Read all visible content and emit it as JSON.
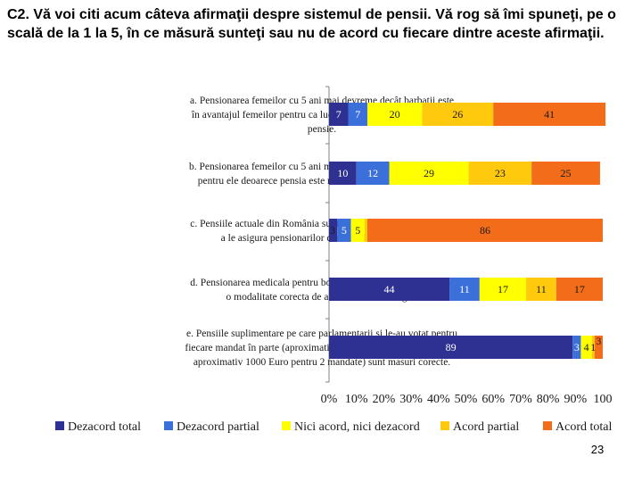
{
  "slide": {
    "title": "C2. Vă voi citi acum câteva afirmaţii despre sistemul de pensii. Vă rog să îmi spuneţi, pe o scală de la 1 la 5, în ce măsură sunteţi sau nu de acord cu fiecare dintre aceste afirmaţii.",
    "page_number": "23"
  },
  "chart_data": {
    "type": "bar",
    "orientation": "horizontal",
    "stacked": true,
    "title": "",
    "xlabel": "",
    "ylabel": "",
    "xlim": [
      0,
      100
    ],
    "x_ticks": [
      "0%",
      "10%",
      "20%",
      "30%",
      "40%",
      "50%",
      "60%",
      "70%",
      "80%",
      "90%",
      "100"
    ],
    "grid": false,
    "legend_position": "bottom",
    "categories": [
      [
        "a. Pensionarea femeilor cu 5 ani mai devreme decât barbatii este",
        "în avantajul femeilor pentru ca lucreaza mai putin pentru aceasi",
        "pensie."
      ],
      [
        "b. Pensionarea femeilor cu 5 ani mai devreme este un dezavantaj",
        "pentru ele deoarece pensia este mult mai mica decât salariul."
      ],
      [
        "c. Pensiile actuale din România sunt complet insuficiente pentru",
        "a le asigura pensionarilor conditii decente de trai."
      ],
      [
        "d. Pensionarea medicala pentru boli/handicapuri inexistente este",
        "o modalitate corecta de a obtine un venit sigur."
      ],
      [
        "e. Pensiile suplimentare pe care parlamentarii si le-au votat pentru",
        "fiecare mandat în parte (aproximativ 500 Euro pentru un mandat si",
        "aproximativ 1000 Euro pentru 2 mandate) sunt masuri corecte."
      ]
    ],
    "series": [
      {
        "name": "Dezacord total",
        "color": "#2E3192",
        "label_color": "#ffffff",
        "values": [
          7,
          10,
          3,
          44,
          89
        ]
      },
      {
        "name": "Dezacord partial",
        "color": "#3B6FD9",
        "label_color": "#ffffff",
        "values": [
          7,
          12,
          5,
          11,
          3
        ]
      },
      {
        "name": "Nici acord, nici dezacord",
        "color": "#FFFF00",
        "label_color": "#1a1a1a",
        "values": [
          20,
          29,
          5,
          17,
          4
        ]
      },
      {
        "name": "Acord partial",
        "color": "#FFC90E",
        "label_color": "#1a1a1a",
        "values": [
          26,
          23,
          1,
          11,
          1
        ]
      },
      {
        "name": "Acord total",
        "color": "#F26C1A",
        "label_color": "#1a1a1a",
        "values": [
          41,
          25,
          86,
          17,
          3
        ]
      }
    ],
    "data_labels": [
      [
        "7",
        "7",
        "20",
        "26",
        "41"
      ],
      [
        "10",
        "12",
        "29",
        "23",
        "25"
      ],
      [
        "3",
        "5",
        "5",
        "",
        "86"
      ],
      [
        "44",
        "11",
        "17",
        "11",
        "17"
      ],
      [
        "89",
        "3",
        "4",
        "1",
        "3"
      ]
    ]
  }
}
